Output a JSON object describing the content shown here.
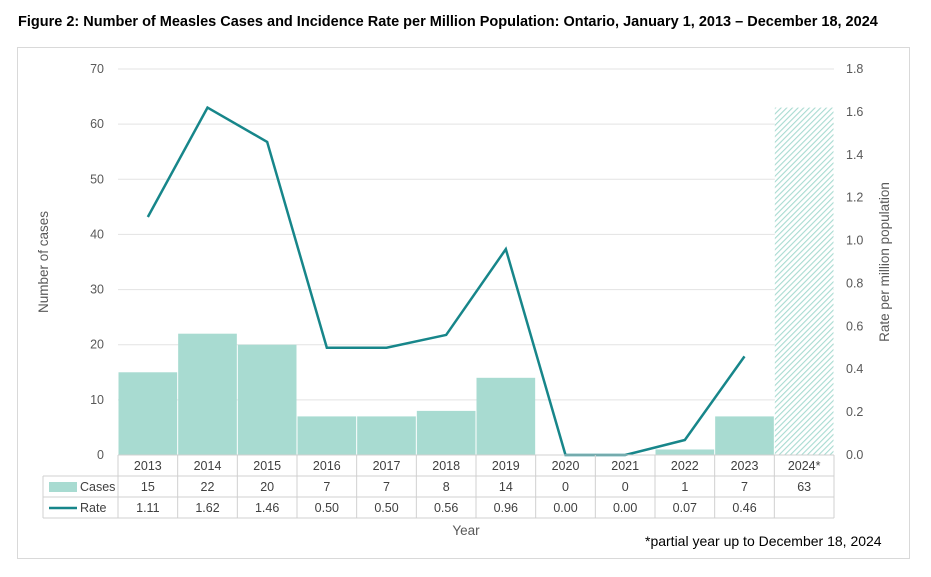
{
  "figure_title": "Figure 2: Number of Measles Cases and Incidence Rate per Million Population: Ontario, January 1, 2013 – December 18, 2024",
  "footnote": "*partial year up to December 18, 2024",
  "colors": {
    "bar": "#a8dbd1",
    "bar_hatch": "#a8dbd1",
    "line": "#17868a",
    "grid": "#e3e3e3",
    "axis_text": "#595959"
  },
  "chart_data": {
    "type": "bar+line",
    "title": "Figure 2: Number of Measles Cases and Incidence Rate per Million Population: Ontario, January 1, 2013 – December 18, 2024",
    "xlabel": "Year",
    "ylabel": "Number of cases",
    "y2label": "Rate per million population",
    "ylim": [
      0,
      70
    ],
    "y2lim": [
      0,
      1.8
    ],
    "yticks": [
      "0",
      "10",
      "20",
      "30",
      "40",
      "50",
      "60",
      "70"
    ],
    "y2ticks": [
      "0.0",
      "0.2",
      "0.4",
      "0.6",
      "0.8",
      "1.0",
      "1.2",
      "1.4",
      "1.6",
      "1.8"
    ],
    "grid": true,
    "categories": [
      "2013",
      "2014",
      "2015",
      "2016",
      "2017",
      "2018",
      "2019",
      "2020",
      "2021",
      "2022",
      "2023",
      "2024*"
    ],
    "series": [
      {
        "name": "Cases",
        "type": "bar",
        "axis": "left",
        "values": [
          15,
          22,
          20,
          7,
          7,
          8,
          14,
          0,
          0,
          1,
          7,
          63
        ],
        "labels": [
          "15",
          "22",
          "20",
          "7",
          "7",
          "8",
          "14",
          "0",
          "0",
          "1",
          "7",
          "63"
        ],
        "hatched": [
          false,
          false,
          false,
          false,
          false,
          false,
          false,
          false,
          false,
          false,
          false,
          true
        ]
      },
      {
        "name": "Rate",
        "type": "line",
        "axis": "right",
        "values": [
          1.11,
          1.62,
          1.46,
          0.5,
          0.5,
          0.56,
          0.96,
          0.0,
          0.0,
          0.07,
          0.46,
          null
        ],
        "labels": [
          "1.11",
          "1.62",
          "1.46",
          "0.50",
          "0.50",
          "0.56",
          "0.96",
          "0.00",
          "0.00",
          "0.07",
          "0.46",
          ""
        ]
      }
    ]
  }
}
